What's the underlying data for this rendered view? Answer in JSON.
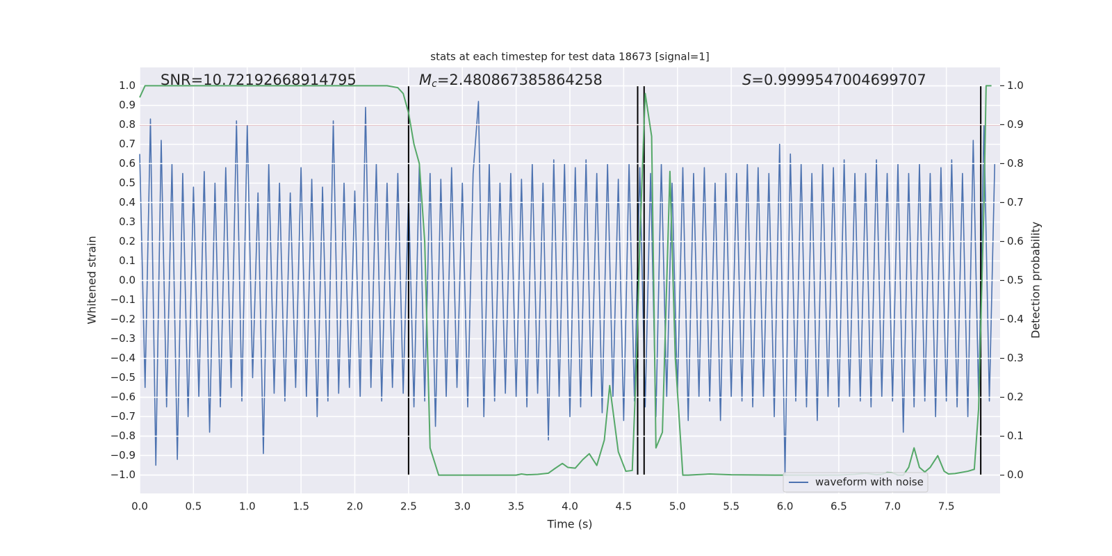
{
  "chart_data": {
    "type": "line",
    "title": "stats at each timestep for test data 18673 [signal=1]",
    "xlabel": "Time (s)",
    "ylabel": "Whitened strain",
    "y2label": "Detection probability",
    "xlim": [
      0,
      8
    ],
    "ylim": [
      -1.095,
      1.095
    ],
    "y2lim": [
      -0.047,
      1.047
    ],
    "grid": true,
    "legend": "lower right",
    "xticks": [
      {
        "value": 0,
        "label": "0.0"
      },
      {
        "value": 0.5,
        "label": "0.5"
      },
      {
        "value": 1,
        "label": "1.0"
      },
      {
        "value": 1.5,
        "label": "1.5"
      },
      {
        "value": 2,
        "label": "2.0"
      },
      {
        "value": 2.5,
        "label": "2.5"
      },
      {
        "value": 3,
        "label": "3.0"
      },
      {
        "value": 3.5,
        "label": "3.5"
      },
      {
        "value": 4,
        "label": "4.0"
      },
      {
        "value": 4.5,
        "label": "4.5"
      },
      {
        "value": 5,
        "label": "5.0"
      },
      {
        "value": 5.5,
        "label": "5.5"
      },
      {
        "value": 6,
        "label": "6.0"
      },
      {
        "value": 6.5,
        "label": "6.5"
      },
      {
        "value": 7,
        "label": "7.0"
      },
      {
        "value": 7.5,
        "label": "7.5"
      }
    ],
    "yticks": [
      {
        "value": -1,
        "label": "−1.0"
      },
      {
        "value": -0.9,
        "label": "−0.9"
      },
      {
        "value": -0.8,
        "label": "−0.8"
      },
      {
        "value": -0.7,
        "label": "−0.7"
      },
      {
        "value": -0.6,
        "label": "−0.6"
      },
      {
        "value": -0.5,
        "label": "−0.5"
      },
      {
        "value": -0.4,
        "label": "−0.4"
      },
      {
        "value": -0.3,
        "label": "−0.3"
      },
      {
        "value": -0.2,
        "label": "−0.2"
      },
      {
        "value": -0.1,
        "label": "−0.1"
      },
      {
        "value": 0,
        "label": "0.0"
      },
      {
        "value": 0.1,
        "label": "0.1"
      },
      {
        "value": 0.2,
        "label": "0.2"
      },
      {
        "value": 0.3,
        "label": "0.3"
      },
      {
        "value": 0.4,
        "label": "0.4"
      },
      {
        "value": 0.5,
        "label": "0.5"
      },
      {
        "value": 0.6,
        "label": "0.6"
      },
      {
        "value": 0.7,
        "label": "0.7"
      },
      {
        "value": 0.8,
        "label": "0.8"
      },
      {
        "value": 0.9,
        "label": "0.9"
      },
      {
        "value": 1,
        "label": "1.0"
      }
    ],
    "y2ticks": [
      {
        "value": 0,
        "label": "0.0"
      },
      {
        "value": 0.1,
        "label": "0.1"
      },
      {
        "value": 0.2,
        "label": "0.2"
      },
      {
        "value": 0.3,
        "label": "0.3"
      },
      {
        "value": 0.4,
        "label": "0.4"
      },
      {
        "value": 0.5,
        "label": "0.5"
      },
      {
        "value": 0.6,
        "label": "0.6"
      },
      {
        "value": 0.7,
        "label": "0.7"
      },
      {
        "value": 0.8,
        "label": "0.8"
      },
      {
        "value": 0.9,
        "label": "0.9"
      },
      {
        "value": 1,
        "label": "1.0"
      }
    ],
    "series": [
      {
        "name": "waveform with noise",
        "color": "#4c72b0",
        "x": [
          0,
          0.05,
          0.1,
          0.15,
          0.2,
          0.25,
          0.3,
          0.35,
          0.4,
          0.45,
          0.5,
          0.55,
          0.6,
          0.65,
          0.7,
          0.75,
          0.8,
          0.85,
          0.9,
          0.95,
          1,
          1.05,
          1.1,
          1.15,
          1.2,
          1.25,
          1.3,
          1.35,
          1.4,
          1.45,
          1.5,
          1.55,
          1.6,
          1.65,
          1.7,
          1.75,
          1.8,
          1.85,
          1.9,
          1.95,
          2,
          2.05,
          2.1,
          2.15,
          2.2,
          2.25,
          2.3,
          2.35,
          2.4,
          2.45,
          2.5,
          2.55,
          2.6,
          2.65,
          2.7,
          2.75,
          2.8,
          2.85,
          2.9,
          2.95,
          3,
          3.05,
          3.1,
          3.15,
          3.2,
          3.25,
          3.3,
          3.35,
          3.4,
          3.45,
          3.5,
          3.55,
          3.6,
          3.65,
          3.7,
          3.75,
          3.8,
          3.85,
          3.9,
          3.95,
          4,
          4.05,
          4.1,
          4.15,
          4.2,
          4.25,
          4.3,
          4.35,
          4.4,
          4.45,
          4.5,
          4.55,
          4.6,
          4.65,
          4.7,
          4.75,
          4.8,
          4.85,
          4.9,
          4.95,
          5,
          5.05,
          5.1,
          5.15,
          5.2,
          5.25,
          5.3,
          5.35,
          5.4,
          5.45,
          5.5,
          5.55,
          5.6,
          5.65,
          5.7,
          5.75,
          5.8,
          5.85,
          5.9,
          5.95,
          6,
          6.05,
          6.1,
          6.15,
          6.2,
          6.25,
          6.3,
          6.35,
          6.4,
          6.45,
          6.5,
          6.55,
          6.6,
          6.65,
          6.7,
          6.75,
          6.8,
          6.85,
          6.9,
          6.95,
          7,
          7.05,
          7.1,
          7.15,
          7.2,
          7.25,
          7.3,
          7.35,
          7.4,
          7.45,
          7.5,
          7.55,
          7.6,
          7.65,
          7.7,
          7.75,
          7.8,
          7.85,
          7.9,
          7.95
        ],
        "values": [
          0.65,
          -0.55,
          0.83,
          -0.95,
          0.72,
          -0.65,
          0.6,
          -0.92,
          0.55,
          -0.7,
          0.48,
          -0.6,
          0.56,
          -0.78,
          0.5,
          -0.65,
          0.58,
          -0.55,
          0.82,
          -0.62,
          0.8,
          -0.5,
          0.45,
          -0.89,
          0.6,
          -0.58,
          0.5,
          -0.62,
          0.45,
          -0.55,
          0.58,
          -0.6,
          0.52,
          -0.7,
          0.48,
          -0.62,
          0.82,
          -0.58,
          0.5,
          -0.55,
          0.46,
          -0.6,
          0.89,
          -0.55,
          0.6,
          -0.62,
          0.5,
          -0.55,
          0.55,
          -0.58,
          0.45,
          -0.65,
          0.6,
          -0.62,
          0.55,
          -0.75,
          0.52,
          -0.6,
          0.58,
          -0.55,
          0.5,
          -0.65,
          0.55,
          0.92,
          -0.7,
          0.6,
          -0.62,
          0.5,
          -0.58,
          0.55,
          -0.6,
          0.52,
          -0.65,
          0.6,
          -0.58,
          0.5,
          -0.82,
          0.62,
          -0.6,
          0.6,
          -0.7,
          0.58,
          -0.65,
          0.62,
          -0.6,
          0.55,
          -0.68,
          0.6,
          -0.6,
          0.52,
          -0.72,
          0.6,
          -0.62,
          0.58,
          -0.65,
          0.55,
          -0.7,
          0.6,
          -0.6,
          0.5,
          -0.58,
          0.58,
          -0.72,
          0.55,
          -0.6,
          0.58,
          -0.62,
          0.5,
          -0.72,
          0.55,
          -0.6,
          0.55,
          -0.62,
          0.6,
          -0.65,
          0.58,
          -0.6,
          0.55,
          -0.7,
          0.7,
          -1.0,
          0.65,
          -0.62,
          0.6,
          -0.65,
          0.55,
          -0.72,
          0.6,
          -0.6,
          0.58,
          -0.65,
          0.62,
          -0.6,
          0.55,
          -0.62,
          0.55,
          -0.65,
          0.62,
          -0.6,
          0.55,
          -0.62,
          0.6,
          -0.78,
          0.55,
          -0.65,
          0.6,
          -0.62,
          0.55,
          -0.7,
          0.58,
          -0.62,
          0.62,
          -0.65,
          0.55,
          -0.7,
          0.72,
          -0.6,
          0.8,
          -0.62,
          0.6
        ]
      },
      {
        "color": "#55a868",
        "axis": "y2",
        "x": [
          0,
          0.05,
          0.5,
          1,
          1.5,
          2,
          2.3,
          2.4,
          2.45,
          2.5,
          2.55,
          2.6,
          2.65,
          2.7,
          2.78,
          2.85,
          3,
          3.5,
          3.55,
          3.6,
          3.7,
          3.8,
          3.85,
          3.93,
          3.98,
          4.05,
          4.12,
          4.18,
          4.25,
          4.32,
          4.37,
          4.45,
          4.52,
          4.58,
          4.62,
          4.65,
          4.7,
          4.76,
          4.8,
          4.86,
          4.93,
          4.98,
          5.05,
          5.1,
          5.3,
          5.5,
          5.9,
          6.5,
          6.65,
          6.75,
          6.85,
          6.9,
          6.95,
          7,
          7.05,
          7.1,
          7.15,
          7.2,
          7.25,
          7.3,
          7.35,
          7.42,
          7.48,
          7.52,
          7.58,
          7.7,
          7.76,
          7.8,
          7.85,
          7.87,
          7.92
        ],
        "values": [
          0.97,
          1,
          1,
          1,
          1,
          1,
          1,
          0.995,
          0.98,
          0.93,
          0.85,
          0.8,
          0.6,
          0.07,
          0,
          0,
          0,
          0,
          0.003,
          0.001,
          0.002,
          0.005,
          0.015,
          0.03,
          0.02,
          0.018,
          0.04,
          0.055,
          0.025,
          0.09,
          0.23,
          0.06,
          0.01,
          0.012,
          0.3,
          0.6,
          0.98,
          0.87,
          0.07,
          0.11,
          0.78,
          0.3,
          0,
          0,
          0.003,
          0.001,
          0,
          0,
          0.002,
          0.005,
          0.001,
          0.002,
          0.007,
          0.006,
          0,
          0,
          0.02,
          0.07,
          0.02,
          0.008,
          0.02,
          0.05,
          0.01,
          0.003,
          0.004,
          0.01,
          0.015,
          0.17,
          0.7,
          1,
          1
        ]
      }
    ],
    "hlines": [
      {
        "y": 0.8,
        "color": "#c44e52"
      }
    ],
    "vlines": {
      "x": [
        2.5,
        4.63,
        4.69,
        7.82
      ],
      "ymin": -1,
      "ymax": 1,
      "color": "#000000"
    },
    "annotations": [
      {
        "text": "SNR=10.72192668914795"
      },
      {
        "symbol": "M",
        "subscript": "c",
        "text": "=2.480867385864258"
      },
      {
        "symbol": "S",
        "text": "=0.9999547004699707"
      }
    ]
  }
}
